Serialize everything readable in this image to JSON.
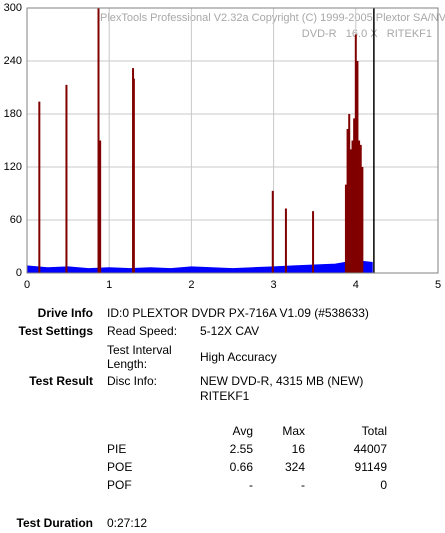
{
  "chart_data": {
    "type": "bar",
    "watermark": [
      "PlexTools Professional V2.32a Copyright (C) 1999-2005 Plextor SA/NV",
      "DVD-R   16.0 X   RITEKF1"
    ],
    "xlim": [
      0,
      5
    ],
    "xticks": [
      0,
      1,
      2,
      3,
      4,
      5
    ],
    "ylim": [
      0,
      300
    ],
    "yticks": [
      0,
      60,
      120,
      180,
      240,
      300
    ],
    "grid": true,
    "end_x": 4.22,
    "end_color": "#000000",
    "series": [
      {
        "color": "#0000ff",
        "kind": "area",
        "x": [
          0,
          0.25,
          0.5,
          0.75,
          1,
          1.25,
          1.5,
          1.75,
          2,
          2.25,
          2.5,
          2.75,
          3,
          3.25,
          3.5,
          3.75,
          4,
          4.2
        ],
        "values": [
          8,
          6,
          7,
          5,
          6,
          5,
          6,
          5,
          7,
          6,
          5,
          6,
          7,
          8,
          9,
          10,
          14,
          12
        ]
      },
      {
        "color": "#800000",
        "kind": "spikes",
        "x": [
          0.15,
          0.48,
          0.87,
          0.89,
          1.29,
          1.3,
          2.99,
          3.15,
          3.48,
          3.88,
          3.9,
          3.92,
          3.94,
          3.96,
          3.98,
          4.0,
          4.02,
          4.04,
          4.06,
          4.08
        ],
        "values": [
          194,
          213,
          300,
          150,
          232,
          220,
          93,
          73,
          70,
          100,
          163,
          180,
          140,
          150,
          175,
          270,
          240,
          150,
          145,
          120
        ]
      }
    ]
  },
  "report": {
    "drive_info": {
      "label": "Drive Info",
      "value": "ID:0 PLEXTOR DVDR PX-716A V1.09 (#538633)"
    },
    "test_settings": {
      "label": "Test Settings",
      "read_speed_label": "Read Speed:",
      "read_speed": "5-12X CAV",
      "interval_label": [
        "Test Interval",
        "Length:"
      ],
      "interval": "High Accuracy"
    },
    "test_result": {
      "label": "Test Result",
      "disc_label": "Disc Info:",
      "disc": [
        "NEW DVD-R, 4315 MB (NEW)",
        "RITEKF1"
      ]
    },
    "table": {
      "header": [
        "Avg",
        "Max",
        "Total"
      ],
      "rows": [
        [
          "PIE",
          2.55,
          16,
          44007
        ],
        [
          "POE",
          0.66,
          324,
          91149
        ],
        [
          "POF",
          "-",
          "-",
          0
        ]
      ]
    },
    "duration": {
      "label": "Test Duration",
      "value": "0:27:12"
    }
  }
}
